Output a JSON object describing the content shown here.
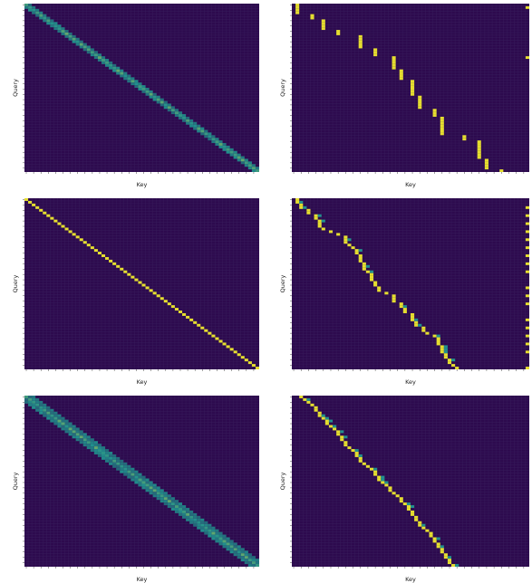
{
  "figure": {
    "background": "#ffffff",
    "colormap": [
      "#2d0a4e",
      "#21908d",
      "#fde725"
    ]
  },
  "chart_data": [
    {
      "type": "heatmap",
      "title": "",
      "xlabel": "Key",
      "ylabel": "Query",
      "rows": 64,
      "cols": 64,
      "grid": true,
      "pattern": "diagonal-soft",
      "strength_range": [
        0,
        1
      ]
    },
    {
      "type": "heatmap",
      "title": "",
      "xlabel": "Key",
      "ylabel": "Query",
      "rows": 64,
      "cols": 64,
      "grid": true,
      "pattern": "stepped-vertical-sharp",
      "strength_range": [
        0,
        1
      ]
    },
    {
      "type": "heatmap",
      "title": "",
      "xlabel": "Key",
      "ylabel": "Query",
      "rows": 64,
      "cols": 64,
      "grid": true,
      "pattern": "diagonal-sharp",
      "strength_range": [
        0,
        1
      ]
    },
    {
      "type": "heatmap",
      "title": "",
      "xlabel": "Key",
      "ylabel": "Query",
      "rows": 64,
      "cols": 64,
      "grid": true,
      "pattern": "stepped-diagonal-with-right-edge",
      "strength_range": [
        0,
        1
      ]
    },
    {
      "type": "heatmap",
      "title": "",
      "xlabel": "Key",
      "ylabel": "Query",
      "rows": 64,
      "cols": 64,
      "grid": true,
      "pattern": "diagonal-soft-wide",
      "strength_range": [
        0,
        1
      ]
    },
    {
      "type": "heatmap",
      "title": "",
      "xlabel": "Key",
      "ylabel": "Query",
      "rows": 64,
      "cols": 64,
      "grid": true,
      "pattern": "stepped-diagonal-sharp",
      "strength_range": [
        0,
        1
      ]
    }
  ]
}
